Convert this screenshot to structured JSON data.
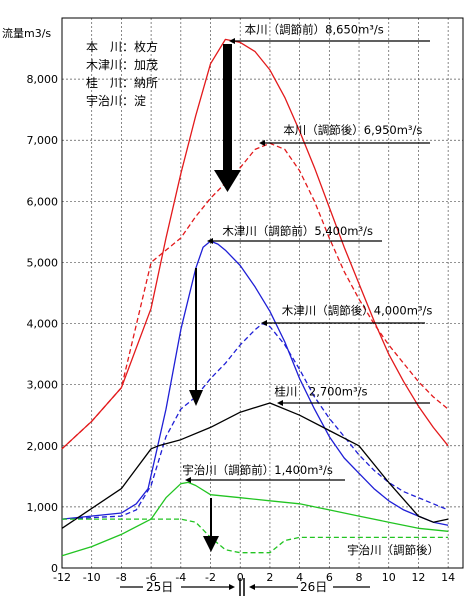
{
  "chart_data": {
    "type": "line",
    "ylabel": "流量m3/s",
    "xlim": [
      -12,
      15
    ],
    "ylim": [
      0,
      9000
    ],
    "x_ticks": [
      "-12",
      "-10",
      "-8",
      "-6",
      "-4",
      "-2",
      "0",
      "2",
      "4",
      "6",
      "8",
      "10",
      "12",
      "14"
    ],
    "y_ticks": [
      "0",
      "1,000",
      "2,000",
      "3,000",
      "4,000",
      "5,000",
      "6,000",
      "7,000",
      "8,000"
    ],
    "grid": true,
    "legend": [
      "本　川：枚方",
      "木津川：加茂",
      "桂　川：納所",
      "宇治川：淀"
    ],
    "day_labels": [
      "25日",
      "26日"
    ],
    "colors": {
      "honkawa": "#e31a1c",
      "kizu": "#1f1fd6",
      "katsura": "#000000",
      "uji": "#22c422"
    },
    "series": [
      {
        "color": "#e31a1c",
        "dash": false,
        "x": [
          -12,
          -10,
          -8,
          -6,
          -5,
          -4,
          -3,
          -2,
          -1,
          0,
          1,
          2,
          3,
          4,
          5,
          6,
          7,
          8,
          9,
          10,
          11,
          12,
          13,
          14
        ],
        "y": [
          1950,
          2400,
          2950,
          4250,
          5400,
          6450,
          7400,
          8250,
          8650,
          8600,
          8450,
          8150,
          7700,
          7150,
          6550,
          5900,
          5250,
          4650,
          4050,
          3500,
          3050,
          2650,
          2300,
          2000
        ]
      },
      {
        "color": "#e31a1c",
        "dash": true,
        "x": [
          -12,
          -10,
          -8,
          -6,
          -4,
          -3,
          -2,
          -1,
          0,
          1,
          2,
          3,
          4,
          5,
          6,
          7,
          8,
          9,
          10,
          11,
          12,
          13,
          14
        ],
        "y": [
          1950,
          2400,
          2950,
          5000,
          5400,
          5750,
          6050,
          6300,
          6550,
          6850,
          6950,
          6850,
          6500,
          6000,
          5400,
          4850,
          4400,
          4000,
          3650,
          3350,
          3050,
          2800,
          2600
        ]
      },
      {
        "color": "#1f1fd6",
        "dash": false,
        "x": [
          -12,
          -8,
          -7,
          -6.2,
          -5,
          -4,
          -3,
          -2.5,
          -2,
          -1.5,
          -1,
          0,
          1,
          2,
          3,
          4,
          5,
          6,
          7,
          8,
          9,
          10,
          11,
          12,
          13,
          14
        ],
        "y": [
          800,
          900,
          1050,
          1300,
          2600,
          3900,
          4900,
          5250,
          5350,
          5300,
          5200,
          4950,
          4600,
          4200,
          3700,
          3100,
          2600,
          2150,
          1800,
          1550,
          1300,
          1100,
          950,
          850,
          750,
          700
        ]
      },
      {
        "color": "#1f1fd6",
        "dash": true,
        "x": [
          -12,
          -8,
          -7,
          -6,
          -5,
          -4,
          -3,
          -2,
          -1,
          0,
          1,
          1.5,
          2,
          3,
          4,
          5,
          6,
          7,
          8,
          9,
          10,
          11,
          12,
          13,
          14
        ],
        "y": [
          800,
          850,
          950,
          1350,
          2150,
          2600,
          2800,
          3100,
          3350,
          3650,
          3900,
          4000,
          3950,
          3650,
          3250,
          2800,
          2450,
          2150,
          1850,
          1600,
          1400,
          1250,
          1150,
          1050,
          950
        ]
      },
      {
        "color": "#000000",
        "dash": false,
        "x": [
          -12,
          -8,
          -6,
          -5.5,
          -4,
          -2,
          0,
          2,
          4,
          6,
          8,
          10,
          12,
          13,
          14
        ],
        "y": [
          650,
          1300,
          1950,
          2000,
          2100,
          2300,
          2550,
          2700,
          2500,
          2250,
          2000,
          1400,
          850,
          750,
          800
        ]
      },
      {
        "color": "#22c422",
        "dash": false,
        "x": [
          -12,
          -10,
          -8,
          -6,
          -5,
          -4,
          -3.5,
          -3,
          -2,
          0,
          2,
          4,
          6,
          8,
          10,
          12,
          14
        ],
        "y": [
          200,
          350,
          550,
          800,
          1150,
          1380,
          1400,
          1350,
          1200,
          1150,
          1100,
          1050,
          950,
          850,
          750,
          650,
          600
        ]
      },
      {
        "color": "#22c422",
        "dash": true,
        "x": [
          -12,
          -8,
          -6,
          -4,
          -3,
          -2,
          -1,
          0,
          1,
          2,
          3,
          4,
          6,
          8,
          10,
          12,
          14
        ],
        "y": [
          800,
          800,
          800,
          800,
          750,
          500,
          300,
          250,
          250,
          250,
          450,
          500,
          500,
          500,
          500,
          500,
          500
        ]
      }
    ],
    "annotations": [
      {
        "text": "本川（調節前）8,650m³/s",
        "x": 0.3,
        "y": 8750
      },
      {
        "text": "本川（調節後）6,950m³/s",
        "x": 2.9,
        "y": 7100
      },
      {
        "text": "木津川（調節前）5,400m³/s",
        "x": -1.2,
        "y": 5450
      },
      {
        "text": "木津川（調節後）4,000m³/s",
        "x": 2.8,
        "y": 4150
      },
      {
        "text": "桂川　2,700m³/s",
        "x": 2.3,
        "y": 2820
      },
      {
        "text": "宇治川（調節前）1,400m³/s",
        "x": -3.9,
        "y": 1540
      },
      {
        "text": "宇治川（調節後）",
        "x": 7.2,
        "y": 230
      }
    ]
  }
}
